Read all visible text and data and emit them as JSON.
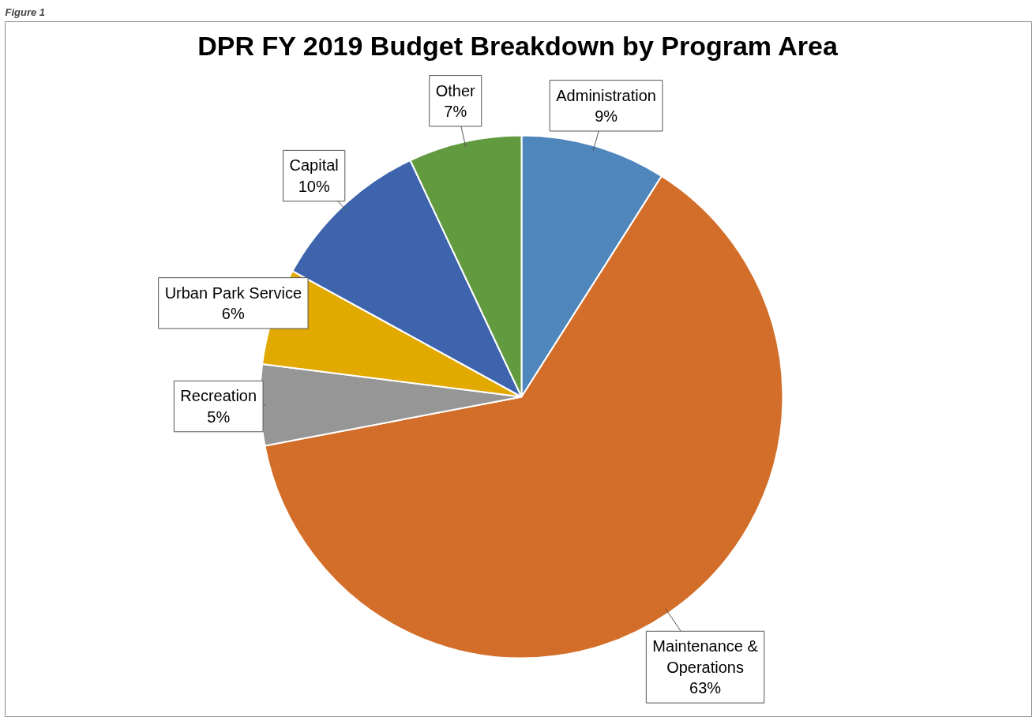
{
  "chart_data": {
    "type": "pie",
    "title": "DPR FY 2019 Budget Breakdown by Program Area",
    "categories": [
      "Administration",
      "Maintenance & Operations",
      "Recreation",
      "Urban Park Service",
      "Capital",
      "Other"
    ],
    "values": [
      9,
      63,
      5,
      6,
      10,
      7
    ],
    "value_labels": [
      "9%",
      "63%",
      "5%",
      "6%",
      "10%",
      "7%"
    ],
    "colors": [
      "#4f87bd",
      "#d36e2a",
      "#969696",
      "#e2a900",
      "#3d64ad",
      "#629a40"
    ],
    "annotations": [
      "Figure 1"
    ]
  }
}
